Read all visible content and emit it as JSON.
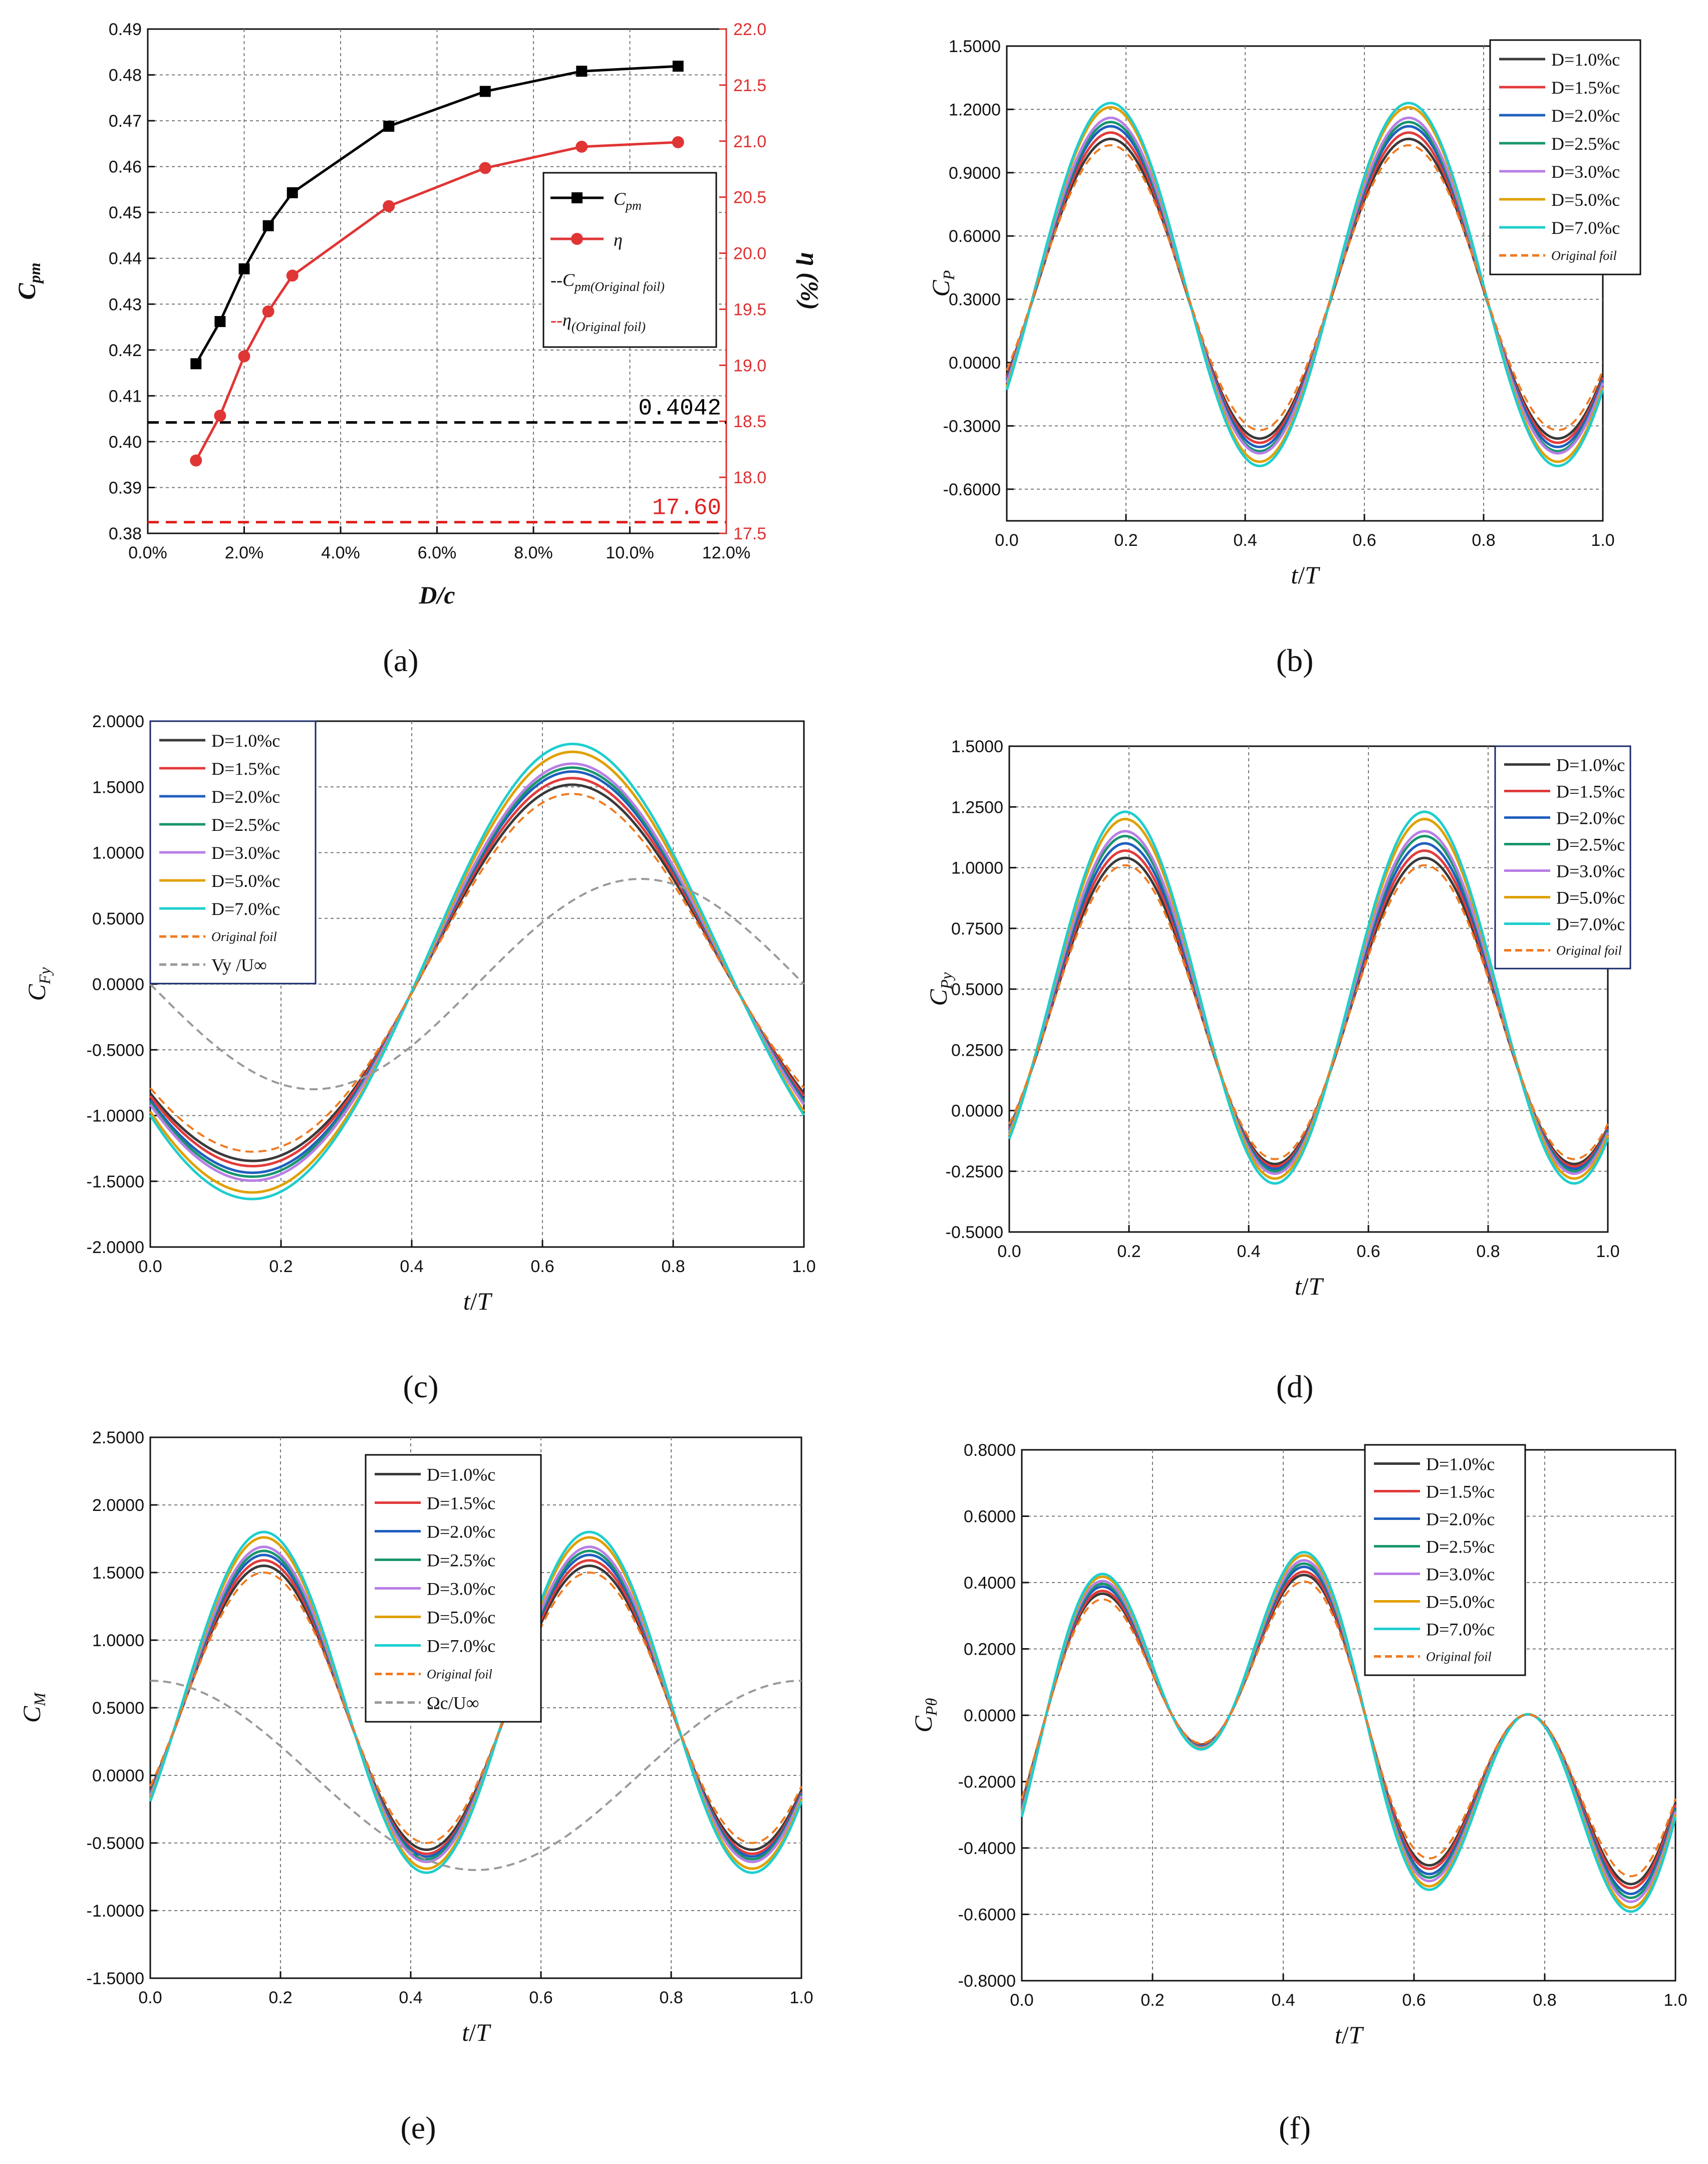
{
  "chart_data": [
    {
      "id": "a",
      "type": "line",
      "panel_label": "(a)",
      "xlabel": "D/c",
      "ylabel": "Cpm",
      "y2label": "η (%)",
      "x_ticks": [
        "0.0%",
        "2.0%",
        "4.0%",
        "6.0%",
        "8.0%",
        "10.0%",
        "12.0%"
      ],
      "xlim": [
        0,
        12
      ],
      "ylim": [
        0.38,
        0.49
      ],
      "y_ticks": [
        "0.38",
        "0.39",
        "0.40",
        "0.41",
        "0.42",
        "0.43",
        "0.44",
        "0.45",
        "0.46",
        "0.47",
        "0.48",
        "0.49"
      ],
      "y2lim": [
        17.5,
        22.0
      ],
      "y2_ticks": [
        "17.5",
        "18.0",
        "18.5",
        "19.0",
        "19.5",
        "20.0",
        "20.5",
        "21.0",
        "21.5",
        "22.0"
      ],
      "grid": true,
      "x": [
        1.0,
        1.5,
        2.0,
        2.5,
        3.0,
        5.0,
        7.0,
        9.0,
        11.0
      ],
      "series": [
        {
          "name": "Cpm",
          "axis": "left",
          "color": "#000000",
          "marker": "square",
          "values": [
            0.417,
            0.4262,
            0.4377,
            0.4471,
            0.4543,
            0.4688,
            0.4764,
            0.4808,
            0.4819
          ]
        },
        {
          "name": "η",
          "axis": "right",
          "color": "#e03535",
          "marker": "circle",
          "values": [
            18.15,
            18.55,
            19.08,
            19.48,
            19.8,
            20.42,
            20.76,
            20.95,
            20.99
          ]
        }
      ],
      "reference_lines": [
        {
          "name": "Cpm(Original foil)",
          "axis": "left",
          "value": 0.4042,
          "label": "0.4042",
          "color": "#000000"
        },
        {
          "name": "η(Original foil)",
          "axis": "right",
          "value": 17.6,
          "label": "17.60",
          "color": "#e02020"
        }
      ],
      "legend": {
        "position": "right-middle",
        "entries": [
          "Cpm",
          "η",
          "Cpm(Original foil)",
          "η(Original foil)"
        ]
      }
    },
    {
      "id": "b",
      "type": "line",
      "panel_label": "(b)",
      "xlabel": "t/T",
      "ylabel": "CP",
      "xlim": [
        0,
        1
      ],
      "x_ticks": [
        "0.0",
        "0.2",
        "0.4",
        "0.6",
        "0.8",
        "1.0"
      ],
      "ylim": [
        -0.75,
        1.5
      ],
      "y_ticks": [
        "-0.6000",
        "-0.3000",
        "0.0000",
        "0.3000",
        "0.6000",
        "0.9000",
        "1.2000",
        "1.5000"
      ],
      "grid": true,
      "curve": "two peaks near t/T=0.2 and 0.7, troughs near 0.42 and 0.92, starting and ending near -0.15",
      "series": [
        {
          "name": "D=1.0%c",
          "color": "#3a3a3a",
          "peak": 1.06,
          "trough": -0.36,
          "end": -0.15
        },
        {
          "name": "D=1.5%c",
          "color": "#e23b3b",
          "peak": 1.09,
          "trough": -0.38,
          "end": -0.15
        },
        {
          "name": "D=2.0%c",
          "color": "#1f5fbf",
          "peak": 1.12,
          "trough": -0.4,
          "end": -0.16
        },
        {
          "name": "D=2.5%c",
          "color": "#18966e",
          "peak": 1.14,
          "trough": -0.42,
          "end": -0.16
        },
        {
          "name": "D=3.0%c",
          "color": "#b87ee6",
          "peak": 1.16,
          "trough": -0.43,
          "end": -0.16
        },
        {
          "name": "D=5.0%c",
          "color": "#e0a000",
          "peak": 1.21,
          "trough": -0.47,
          "end": -0.17
        },
        {
          "name": "D=7.0%c",
          "color": "#1ecece",
          "peak": 1.23,
          "trough": -0.49,
          "end": -0.17
        },
        {
          "name": "Original foil",
          "color": "#f07a20",
          "dashed": true,
          "peak": 1.03,
          "trough": -0.32,
          "end": -0.15
        }
      ],
      "legend": {
        "position": "top-right"
      }
    },
    {
      "id": "c",
      "type": "line",
      "panel_label": "(c)",
      "xlabel": "t/T",
      "ylabel": "CFy",
      "xlim": [
        0,
        1
      ],
      "x_ticks": [
        "0.0",
        "0.2",
        "0.4",
        "0.6",
        "0.8",
        "1.0"
      ],
      "ylim": [
        -2.0,
        2.0
      ],
      "y_ticks": [
        "-2.0000",
        "-1.5000",
        "-1.0000",
        "-0.5000",
        "0.0000",
        "0.5000",
        "1.0000",
        "1.5000",
        "2.0000"
      ],
      "grid": true,
      "series": [
        {
          "name": "D=1.0%c",
          "color": "#3a3a3a",
          "max": 1.44,
          "min": -1.42,
          "start": -1.01
        },
        {
          "name": "D=1.5%c",
          "color": "#e23b3b",
          "max": 1.49,
          "min": -1.46,
          "start": -1.03
        },
        {
          "name": "D=2.0%c",
          "color": "#1f5fbf",
          "max": 1.54,
          "min": -1.51,
          "start": -1.06
        },
        {
          "name": "D=2.5%c",
          "color": "#18966e",
          "max": 1.57,
          "min": -1.54,
          "start": -1.08
        },
        {
          "name": "D=3.0%c",
          "color": "#b87ee6",
          "max": 1.6,
          "min": -1.57,
          "start": -1.1
        },
        {
          "name": "D=5.0%c",
          "color": "#e0a000",
          "max": 1.69,
          "min": -1.66,
          "start": -1.18
        },
        {
          "name": "D=7.0%c",
          "color": "#1ecece",
          "max": 1.75,
          "min": -1.71,
          "start": -1.24
        },
        {
          "name": "Original foil",
          "color": "#f07a20",
          "dashed": true,
          "max": 1.37,
          "min": -1.35,
          "start": -0.94
        },
        {
          "name": "Vy /U∞",
          "color": "#999999",
          "dashed": true,
          "amplitude": 0.8,
          "phase": "-sin(2πt/T)"
        }
      ],
      "legend": {
        "position": "top-left"
      }
    },
    {
      "id": "d",
      "type": "line",
      "panel_label": "(d)",
      "xlabel": "t/T",
      "ylabel": "CPy",
      "xlim": [
        0,
        1
      ],
      "x_ticks": [
        "0.0",
        "0.2",
        "0.4",
        "0.6",
        "0.8",
        "1.0"
      ],
      "ylim": [
        -0.5,
        1.5
      ],
      "y_ticks": [
        "-0.5000",
        "-0.2500",
        "0.0000",
        "0.2500",
        "0.5000",
        "0.7500",
        "1.0000",
        "1.2500",
        "1.5000"
      ],
      "grid": true,
      "series": [
        {
          "name": "D=1.0%c",
          "color": "#3a3a3a",
          "peak": 1.04,
          "trough": -0.22
        },
        {
          "name": "D=1.5%c",
          "color": "#e23b3b",
          "peak": 1.07,
          "trough": -0.23
        },
        {
          "name": "D=2.0%c",
          "color": "#1f5fbf",
          "peak": 1.1,
          "trough": -0.24
        },
        {
          "name": "D=2.5%c",
          "color": "#18966e",
          "peak": 1.13,
          "trough": -0.25
        },
        {
          "name": "D=3.0%c",
          "color": "#b87ee6",
          "peak": 1.15,
          "trough": -0.26
        },
        {
          "name": "D=5.0%c",
          "color": "#e0a000",
          "peak": 1.2,
          "trough": -0.28
        },
        {
          "name": "D=7.0%c",
          "color": "#1ecece",
          "peak": 1.23,
          "trough": -0.3
        },
        {
          "name": "Original foil",
          "color": "#f07a20",
          "dashed": true,
          "peak": 1.01,
          "trough": -0.2
        }
      ],
      "legend": {
        "position": "top-right"
      }
    },
    {
      "id": "e",
      "type": "line",
      "panel_label": "(e)",
      "xlabel": "t/T",
      "ylabel": "CM",
      "xlim": [
        0,
        1
      ],
      "x_ticks": [
        "0.0",
        "0.2",
        "0.4",
        "0.6",
        "0.8",
        "1.0"
      ],
      "ylim": [
        -1.5,
        2.5
      ],
      "y_ticks": [
        "-1.5000",
        "-1.0000",
        "-0.5000",
        "0.0000",
        "0.5000",
        "1.0000",
        "1.5000",
        "2.0000",
        "2.5000"
      ],
      "grid": true,
      "series": [
        {
          "name": "D=1.0%c",
          "color": "#3a3a3a",
          "peak": 1.55,
          "trough": -0.55
        },
        {
          "name": "D=1.5%c",
          "color": "#e23b3b",
          "peak": 1.59,
          "trough": -0.58
        },
        {
          "name": "D=2.0%c",
          "color": "#1f5fbf",
          "peak": 1.63,
          "trough": -0.6
        },
        {
          "name": "D=2.5%c",
          "color": "#18966e",
          "peak": 1.66,
          "trough": -0.62
        },
        {
          "name": "D=3.0%c",
          "color": "#b87ee6",
          "peak": 1.69,
          "trough": -0.64
        },
        {
          "name": "D=5.0%c",
          "color": "#e0a000",
          "peak": 1.76,
          "trough": -0.69
        },
        {
          "name": "D=7.0%c",
          "color": "#1ecece",
          "peak": 1.8,
          "trough": -0.72
        },
        {
          "name": "Original foil",
          "color": "#f07a20",
          "dashed": true,
          "peak": 1.5,
          "trough": -0.5
        },
        {
          "name": "Ωc/U∞",
          "color": "#999999",
          "dashed": true,
          "amplitude": 0.7,
          "phase": "cos(2πt/T)"
        }
      ],
      "legend": {
        "position": "top-center"
      }
    },
    {
      "id": "f",
      "type": "line",
      "panel_label": "(f)",
      "xlabel": "t/T",
      "ylabel": "CPθ",
      "xlim": [
        0,
        1
      ],
      "x_ticks": [
        "0.0",
        "0.2",
        "0.4",
        "0.6",
        "0.8",
        "1.0"
      ],
      "ylim": [
        -0.8,
        0.8
      ],
      "y_ticks": [
        "-0.8000",
        "-0.6000",
        "-0.4000",
        "-0.2000",
        "0.0000",
        "0.2000",
        "0.4000",
        "0.6000",
        "0.8000"
      ],
      "grid": true,
      "series": [
        {
          "name": "D=1.0%c",
          "color": "#3a3a3a",
          "scale": 0.86
        },
        {
          "name": "D=1.5%c",
          "color": "#e23b3b",
          "scale": 0.88
        },
        {
          "name": "D=2.0%c",
          "color": "#1f5fbf",
          "scale": 0.91
        },
        {
          "name": "D=2.5%c",
          "color": "#18966e",
          "scale": 0.93
        },
        {
          "name": "D=3.0%c",
          "color": "#b87ee6",
          "scale": 0.95
        },
        {
          "name": "D=5.0%c",
          "color": "#e0a000",
          "scale": 0.98
        },
        {
          "name": "D=7.0%c",
          "color": "#1ecece",
          "scale": 1.0
        },
        {
          "name": "Original foil",
          "color": "#f07a20",
          "dashed": true,
          "scale": 0.82
        }
      ],
      "legend": {
        "position": "top-center"
      }
    }
  ]
}
